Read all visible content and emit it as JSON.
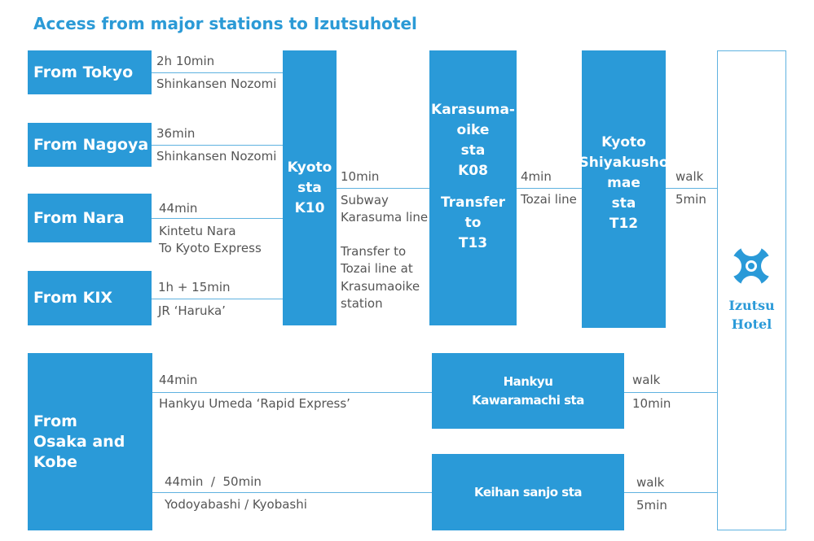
{
  "title": "Access from major stations to Izutsuhotel",
  "origins": [
    {
      "label": "From Tokyo",
      "time": "2h 10min",
      "route": [
        "Shinkansen Nozomi"
      ]
    },
    {
      "label": "From Nagoya",
      "time": "36min",
      "route": [
        "Shinkansen Nozomi"
      ]
    },
    {
      "label": "From Nara",
      "time": "44min",
      "route": [
        "Kintetu Nara",
        "To Kyoto Express"
      ]
    },
    {
      "label": "From KIX",
      "time": "1h + 15min",
      "route": [
        "JR ‘Haruka’"
      ]
    }
  ],
  "kyoto_station": [
    "Kyoto",
    "sta",
    "K10"
  ],
  "kyoto_to_karasuma": {
    "time": "10min",
    "route": [
      "Subway",
      "Karasuma line"
    ],
    "note": [
      "Transfer to",
      "Tozai line at",
      "Krasumaoike",
      "station"
    ]
  },
  "karasuma_station": {
    "name": [
      "Karasuma-",
      "oike",
      "sta",
      "K08"
    ],
    "transfer": [
      "Transfer",
      "to",
      "T13"
    ]
  },
  "karasuma_to_shiyakusho": {
    "time": "4min",
    "route": "Tozai line"
  },
  "shiyakusho_station": [
    "Kyoto",
    "Shiyakusho",
    "mae",
    "sta",
    "T12"
  ],
  "shiyakusho_to_hotel": {
    "mode": "walk",
    "time": "5min"
  },
  "hotel": [
    "Izutsu",
    "Hotel"
  ],
  "osaka_kobe": {
    "label": [
      "From",
      "Osaka and",
      "Kobe"
    ],
    "routes": [
      {
        "time": "44min",
        "route": "Hankyu Umeda ‘Rapid Express’",
        "station": [
          "Hankyu",
          "Kawaramachi sta"
        ],
        "mode": "walk",
        "walk_time": "10min"
      },
      {
        "time": "44min  /  50min",
        "route": "Yodoyabashi / Kyobashi",
        "station": [
          "Keihan sanjo sta"
        ],
        "mode": "walk",
        "walk_time": "5min"
      }
    ]
  }
}
